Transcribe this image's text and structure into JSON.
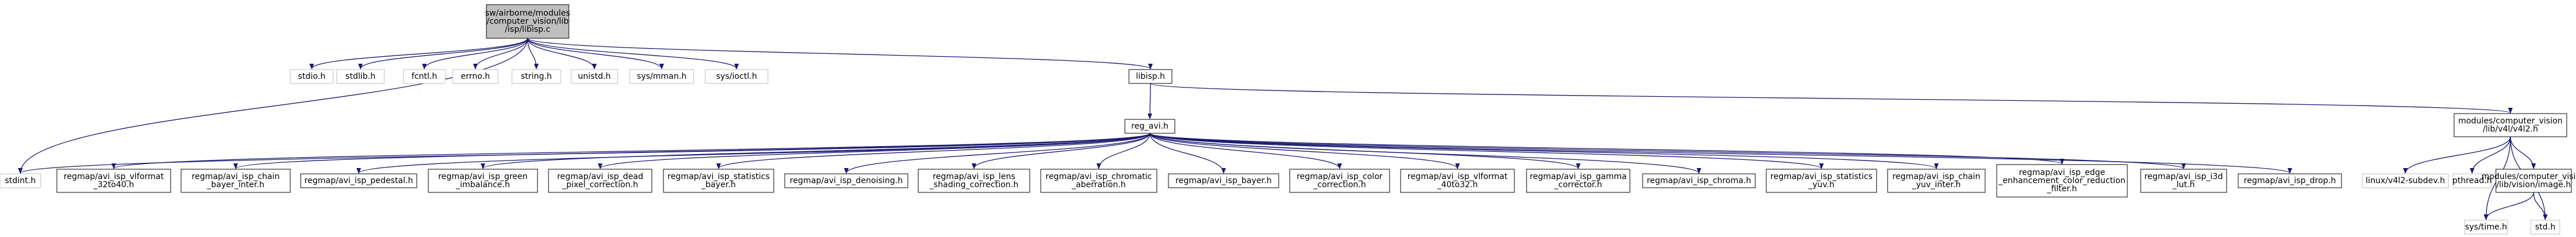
{
  "graph": {
    "colors": {
      "edge": "#191970",
      "root_fill": "#bfbfbf",
      "grey_border": "#bfbfbf",
      "black_border": "#000000"
    },
    "nodes": [
      {
        "id": "root",
        "lines": [
          "sw/airborne/modules",
          "/computer_vision/lib",
          "/isp/libisp.c"
        ],
        "style": "root"
      },
      {
        "id": "stdio",
        "lines": [
          "stdio.h"
        ],
        "style": "grey"
      },
      {
        "id": "stdlib",
        "lines": [
          "stdlib.h"
        ],
        "style": "grey"
      },
      {
        "id": "fcntl",
        "lines": [
          "fcntl.h"
        ],
        "style": "grey"
      },
      {
        "id": "errno",
        "lines": [
          "errno.h"
        ],
        "style": "grey"
      },
      {
        "id": "string",
        "lines": [
          "string.h"
        ],
        "style": "grey"
      },
      {
        "id": "unistd",
        "lines": [
          "unistd.h"
        ],
        "style": "grey"
      },
      {
        "id": "mman",
        "lines": [
          "sys/mman.h"
        ],
        "style": "grey"
      },
      {
        "id": "ioctl",
        "lines": [
          "sys/ioctl.h"
        ],
        "style": "grey"
      },
      {
        "id": "libisp",
        "lines": [
          "libisp.h"
        ],
        "style": "black"
      },
      {
        "id": "regavi",
        "lines": [
          "reg_avi.h"
        ],
        "style": "black"
      },
      {
        "id": "v4l2",
        "lines": [
          "modules/computer_vision",
          "/lib/v4l/v4l2.h"
        ],
        "style": "black"
      },
      {
        "id": "stdint",
        "lines": [
          "stdint.h"
        ],
        "style": "grey"
      },
      {
        "id": "vformat32",
        "lines": [
          "regmap/avi_isp_vlformat",
          "_32to40.h"
        ],
        "style": "black"
      },
      {
        "id": "chainbayer",
        "lines": [
          "regmap/avi_isp_chain",
          "_bayer_inter.h"
        ],
        "style": "black"
      },
      {
        "id": "pedestal",
        "lines": [
          "regmap/avi_isp_pedestal.h"
        ],
        "style": "black"
      },
      {
        "id": "green",
        "lines": [
          "regmap/avi_isp_green",
          "_imbalance.h"
        ],
        "style": "black"
      },
      {
        "id": "dead",
        "lines": [
          "regmap/avi_isp_dead",
          "_pixel_correction.h"
        ],
        "style": "black"
      },
      {
        "id": "statbayer",
        "lines": [
          "regmap/avi_isp_statistics",
          "_bayer.h"
        ],
        "style": "black"
      },
      {
        "id": "denoising",
        "lines": [
          "regmap/avi_isp_denoising.h"
        ],
        "style": "black"
      },
      {
        "id": "lens",
        "lines": [
          "regmap/avi_isp_lens",
          "_shading_correction.h"
        ],
        "style": "black"
      },
      {
        "id": "chromatic",
        "lines": [
          "regmap/avi_isp_chromatic",
          "_aberration.h"
        ],
        "style": "black"
      },
      {
        "id": "bayer",
        "lines": [
          "regmap/avi_isp_bayer.h"
        ],
        "style": "black"
      },
      {
        "id": "color",
        "lines": [
          "regmap/avi_isp_color",
          "_correction.h"
        ],
        "style": "black"
      },
      {
        "id": "vformat40",
        "lines": [
          "regmap/avi_isp_vlformat",
          "_40to32.h"
        ],
        "style": "black"
      },
      {
        "id": "gamma",
        "lines": [
          "regmap/avi_isp_gamma",
          "_corrector.h"
        ],
        "style": "black"
      },
      {
        "id": "chroma",
        "lines": [
          "regmap/avi_isp_chroma.h"
        ],
        "style": "black"
      },
      {
        "id": "statyuv",
        "lines": [
          "regmap/avi_isp_statistics",
          "_yuv.h"
        ],
        "style": "black"
      },
      {
        "id": "chainyuv",
        "lines": [
          "regmap/avi_isp_chain",
          "_yuv_inter.h"
        ],
        "style": "black"
      },
      {
        "id": "edge",
        "lines": [
          "regmap/avi_isp_edge",
          "_enhancement_color_reduction",
          "_filter.h"
        ],
        "style": "black"
      },
      {
        "id": "i3d",
        "lines": [
          "regmap/avi_isp_i3d",
          "_lut.h"
        ],
        "style": "black"
      },
      {
        "id": "drop",
        "lines": [
          "regmap/avi_isp_drop.h"
        ],
        "style": "black"
      },
      {
        "id": "subdev",
        "lines": [
          "linux/v4l2-subdev.h"
        ],
        "style": "grey"
      },
      {
        "id": "pthread",
        "lines": [
          "pthread.h"
        ],
        "style": "grey"
      },
      {
        "id": "visionimage",
        "lines": [
          "modules/computer_vision",
          "/lib/vision/image.h"
        ],
        "style": "black"
      },
      {
        "id": "systime",
        "lines": [
          "sys/time.h"
        ],
        "style": "grey"
      },
      {
        "id": "stdh",
        "lines": [
          "std.h"
        ],
        "style": "grey"
      }
    ],
    "edges": [
      [
        "root",
        "stdio"
      ],
      [
        "root",
        "stdlib"
      ],
      [
        "root",
        "fcntl"
      ],
      [
        "root",
        "errno"
      ],
      [
        "root",
        "string"
      ],
      [
        "root",
        "unistd"
      ],
      [
        "root",
        "mman"
      ],
      [
        "root",
        "ioctl"
      ],
      [
        "root",
        "libisp"
      ],
      [
        "root",
        "stdint"
      ],
      [
        "libisp",
        "regavi"
      ],
      [
        "libisp",
        "v4l2"
      ],
      [
        "regavi",
        "stdint"
      ],
      [
        "regavi",
        "vformat32"
      ],
      [
        "regavi",
        "chainbayer"
      ],
      [
        "regavi",
        "pedestal"
      ],
      [
        "regavi",
        "green"
      ],
      [
        "regavi",
        "dead"
      ],
      [
        "regavi",
        "statbayer"
      ],
      [
        "regavi",
        "denoising"
      ],
      [
        "regavi",
        "lens"
      ],
      [
        "regavi",
        "chromatic"
      ],
      [
        "regavi",
        "bayer"
      ],
      [
        "regavi",
        "color"
      ],
      [
        "regavi",
        "vformat40"
      ],
      [
        "regavi",
        "gamma"
      ],
      [
        "regavi",
        "chroma"
      ],
      [
        "regavi",
        "statyuv"
      ],
      [
        "regavi",
        "chainyuv"
      ],
      [
        "regavi",
        "edge"
      ],
      [
        "regavi",
        "i3d"
      ],
      [
        "regavi",
        "drop"
      ],
      [
        "v4l2",
        "subdev"
      ],
      [
        "v4l2",
        "pthread"
      ],
      [
        "v4l2",
        "visionimage"
      ],
      [
        "v4l2",
        "systime"
      ],
      [
        "v4l2",
        "stdh"
      ],
      [
        "visionimage",
        "systime"
      ],
      [
        "visionimage",
        "stdh"
      ]
    ]
  }
}
